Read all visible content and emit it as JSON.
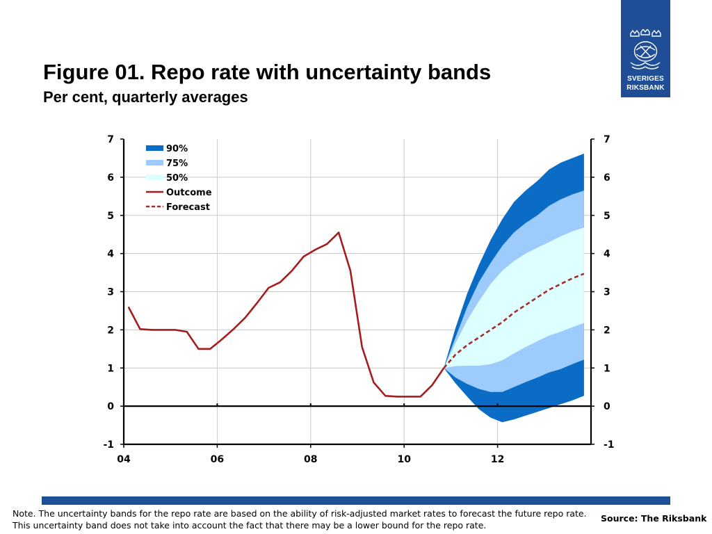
{
  "header": {
    "title": "Figure 01. Repo rate with uncertainty bands",
    "subtitle": "Per cent, quarterly averages"
  },
  "logo": {
    "line1": "SVERIGES",
    "line2": "RIKSBANK",
    "color": "#1f4e96"
  },
  "footer": {
    "note": "Note. The uncertainty bands for the repo rate are based on the ability of risk-adjusted market rates to forecast the future repo rate. This uncertainty band does not take into account the fact that there may be a lower bound for the repo rate.",
    "source": "Source: The Riksbank"
  },
  "chart_data": {
    "type": "line",
    "title": "Figure 01. Repo rate with uncertainty bands",
    "subtitle": "Per cent, quarterly averages",
    "xlim": [
      2004.0,
      2014.0
    ],
    "ylim": [
      -1,
      7
    ],
    "yticks": [
      -1,
      0,
      1,
      2,
      3,
      4,
      5,
      6,
      7
    ],
    "xticks": [
      {
        "value": 2004,
        "label": "04"
      },
      {
        "value": 2006,
        "label": "06"
      },
      {
        "value": 2008,
        "label": "08"
      },
      {
        "value": 2010,
        "label": "10"
      },
      {
        "value": 2012,
        "label": "12"
      }
    ],
    "grid": true,
    "legend_position": "top-left",
    "colors": {
      "band90": "#0a6cc4",
      "band75": "#9dcbfb",
      "band50": "#ddffff",
      "outcome": "#a51c1c",
      "forecast": "#a52a2a"
    },
    "legend": [
      {
        "label": "90%",
        "kind": "band",
        "color": "#0a6cc4"
      },
      {
        "label": "75%",
        "kind": "band",
        "color": "#9dcbfb"
      },
      {
        "label": "50%",
        "kind": "band",
        "color": "#ddffff"
      },
      {
        "label": "Outcome",
        "kind": "line",
        "color": "#a51c1c"
      },
      {
        "label": "Forecast",
        "kind": "dashed",
        "color": "#a52a2a"
      }
    ],
    "series": [
      {
        "name": "Outcome",
        "style": "solid",
        "x": [
          2004.1,
          2004.35,
          2004.6,
          2004.85,
          2005.1,
          2005.35,
          2005.6,
          2005.85,
          2006.1,
          2006.35,
          2006.6,
          2006.85,
          2007.1,
          2007.35,
          2007.6,
          2007.85,
          2008.1,
          2008.35,
          2008.6,
          2008.85,
          2009.1,
          2009.35,
          2009.6,
          2009.85,
          2010.1,
          2010.35,
          2010.6,
          2010.85
        ],
        "y": [
          2.6,
          2.02,
          2.0,
          2.0,
          2.0,
          1.95,
          1.5,
          1.5,
          1.75,
          2.02,
          2.32,
          2.7,
          3.1,
          3.25,
          3.55,
          3.92,
          4.1,
          4.25,
          4.55,
          3.55,
          1.55,
          0.62,
          0.27,
          0.25,
          0.25,
          0.25,
          0.55,
          1.0
        ]
      },
      {
        "name": "Forecast",
        "style": "dashed",
        "x": [
          2010.85,
          2011.1,
          2011.35,
          2011.6,
          2011.85,
          2012.1,
          2012.35,
          2012.6,
          2012.85,
          2013.1,
          2013.35,
          2013.6,
          2013.85
        ],
        "y": [
          1.0,
          1.35,
          1.6,
          1.8,
          2.0,
          2.2,
          2.45,
          2.65,
          2.85,
          3.05,
          3.2,
          3.35,
          3.47
        ]
      }
    ],
    "bands": [
      {
        "name": "90%",
        "x": [
          2010.85,
          2011.1,
          2011.35,
          2011.6,
          2011.85,
          2012.1,
          2012.35,
          2012.6,
          2012.85,
          2013.1,
          2013.35,
          2013.6,
          2013.85
        ],
        "lower": [
          1.0,
          0.6,
          0.25,
          -0.08,
          -0.3,
          -0.42,
          -0.35,
          -0.25,
          -0.15,
          -0.05,
          0.05,
          0.15,
          0.27
        ],
        "upper": [
          1.0,
          2.05,
          2.95,
          3.7,
          4.35,
          4.9,
          5.35,
          5.65,
          5.9,
          6.2,
          6.38,
          6.5,
          6.62
        ]
      },
      {
        "name": "75%",
        "x": [
          2010.85,
          2011.1,
          2011.35,
          2011.6,
          2011.85,
          2012.1,
          2012.35,
          2012.6,
          2012.85,
          2013.1,
          2013.35,
          2013.6,
          2013.85
        ],
        "lower": [
          1.0,
          0.75,
          0.58,
          0.45,
          0.37,
          0.37,
          0.5,
          0.63,
          0.75,
          0.88,
          0.97,
          1.1,
          1.22
        ],
        "upper": [
          1.0,
          1.8,
          2.6,
          3.25,
          3.75,
          4.2,
          4.55,
          4.8,
          5.0,
          5.25,
          5.42,
          5.55,
          5.65
        ]
      },
      {
        "name": "50%",
        "x": [
          2010.85,
          2011.1,
          2011.35,
          2011.6,
          2011.85,
          2012.1,
          2012.35,
          2012.6,
          2012.85,
          2013.1,
          2013.35,
          2013.6,
          2013.85
        ],
        "lower": [
          1.0,
          1.05,
          1.06,
          1.06,
          1.1,
          1.2,
          1.38,
          1.55,
          1.7,
          1.85,
          1.95,
          2.07,
          2.18
        ],
        "upper": [
          1.0,
          1.65,
          2.25,
          2.75,
          3.2,
          3.55,
          3.8,
          4.0,
          4.15,
          4.3,
          4.45,
          4.58,
          4.68
        ]
      }
    ]
  }
}
